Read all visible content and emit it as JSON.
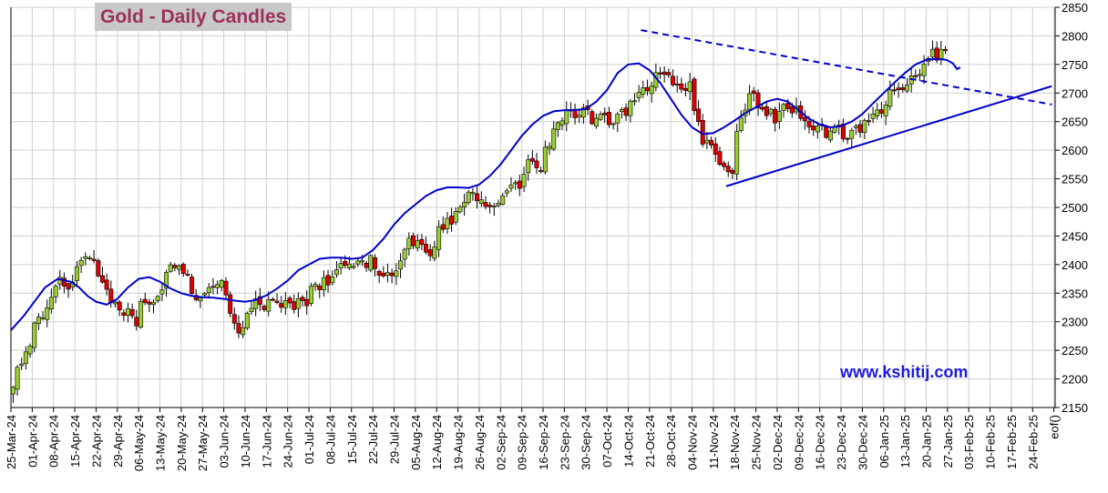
{
  "title": "Gold - Daily Candles",
  "watermark": "www.kshitij.com",
  "colors": {
    "up": "#9acd32",
    "down": "#e00000",
    "ma": "#0000cc",
    "trend": "#0000cc",
    "grid": "#cfcfcf"
  },
  "chart_data": {
    "type": "candlestick",
    "title": "Gold - Daily Candles",
    "ylim": [
      2150,
      2850
    ],
    "yticks": [
      2150,
      2200,
      2250,
      2300,
      2350,
      2400,
      2450,
      2500,
      2550,
      2600,
      2650,
      2700,
      2750,
      2800,
      2850
    ],
    "y_axis_side": "right",
    "grid": true,
    "x_labels": [
      "25-Mar-24",
      "01-Apr-24",
      "08-Apr-24",
      "15-Apr-24",
      "22-Apr-24",
      "29-Apr-24",
      "06-May-24",
      "13-May-24",
      "20-May-24",
      "27-May-24",
      "03-Jun-24",
      "10-Jun-24",
      "17-Jun-24",
      "24-Jun-24",
      "01-Jul-24",
      "08-Jul-24",
      "15-Jul-24",
      "22-Jul-24",
      "29-Jul-24",
      "05-Aug-24",
      "12-Aug-24",
      "19-Aug-24",
      "26-Aug-24",
      "02-Sep-24",
      "09-Sep-24",
      "16-Sep-24",
      "23-Sep-24",
      "30-Sep-24",
      "07-Oct-24",
      "14-Oct-24",
      "21-Oct-24",
      "28-Oct-24",
      "04-Nov-24",
      "11-Nov-24",
      "18-Nov-24",
      "25-Nov-24",
      "02-Dec-24",
      "09-Dec-24",
      "16-Dec-24",
      "23-Dec-24",
      "30-Dec-24",
      "06-Jan-25",
      "13-Jan-25",
      "20-Jan-25",
      "27-Jan-25",
      "03-Feb-25",
      "10-Feb-25",
      "17-Feb-25",
      "24-Feb-25",
      "eof()"
    ],
    "weekly_closes": [
      2245,
      2330,
      2360,
      2395,
      2320,
      2305,
      2365,
      2400,
      2340,
      2345,
      2295,
      2330,
      2325,
      2335,
      2380,
      2410,
      2410,
      2395,
      2440,
      2430,
      2490,
      2520,
      2510,
      2550,
      2580,
      2645,
      2680,
      2640,
      2660,
      2710,
      2740,
      2715,
      2590,
      2570,
      2700,
      2650,
      2660,
      2640,
      2620,
      2630,
      2670,
      2715,
      2750,
      2765
    ],
    "moving_average": {
      "name": "",
      "points": [
        [
          0,
          2285
        ],
        [
          0.6,
          2310
        ],
        [
          1.1,
          2335
        ],
        [
          1.6,
          2360
        ],
        [
          2.2,
          2375
        ],
        [
          2.8,
          2370
        ],
        [
          3.2,
          2360
        ],
        [
          3.6,
          2345
        ],
        [
          4.0,
          2335
        ],
        [
          4.5,
          2330
        ],
        [
          5.0,
          2340
        ],
        [
          5.5,
          2360
        ],
        [
          6.0,
          2375
        ],
        [
          6.5,
          2378
        ],
        [
          7.0,
          2370
        ],
        [
          7.5,
          2358
        ],
        [
          8.0,
          2350
        ],
        [
          8.5,
          2345
        ],
        [
          9.0,
          2343
        ],
        [
          9.5,
          2342
        ],
        [
          10.0,
          2340
        ],
        [
          10.5,
          2337
        ],
        [
          11.0,
          2335
        ],
        [
          11.5,
          2338
        ],
        [
          12.0,
          2346
        ],
        [
          12.5,
          2358
        ],
        [
          13.0,
          2372
        ],
        [
          13.5,
          2390
        ],
        [
          14.0,
          2400
        ],
        [
          14.5,
          2410
        ],
        [
          15.0,
          2412
        ],
        [
          15.5,
          2412
        ],
        [
          16.0,
          2410
        ],
        [
          16.5,
          2412
        ],
        [
          17.0,
          2425
        ],
        [
          17.5,
          2445
        ],
        [
          18.0,
          2470
        ],
        [
          18.5,
          2490
        ],
        [
          19.0,
          2505
        ],
        [
          19.5,
          2520
        ],
        [
          20.0,
          2530
        ],
        [
          20.5,
          2535
        ],
        [
          21.0,
          2535
        ],
        [
          21.5,
          2534
        ],
        [
          22.0,
          2540
        ],
        [
          22.5,
          2555
        ],
        [
          23.0,
          2575
        ],
        [
          23.5,
          2600
        ],
        [
          24.0,
          2625
        ],
        [
          24.5,
          2645
        ],
        [
          25.0,
          2660
        ],
        [
          25.5,
          2668
        ],
        [
          26.0,
          2670
        ],
        [
          26.5,
          2670
        ],
        [
          27.0,
          2672
        ],
        [
          27.5,
          2685
        ],
        [
          28.0,
          2705
        ],
        [
          28.5,
          2735
        ],
        [
          29.0,
          2750
        ],
        [
          29.5,
          2752
        ],
        [
          30.0,
          2740
        ],
        [
          30.5,
          2718
        ],
        [
          31.0,
          2690
        ],
        [
          31.5,
          2662
        ],
        [
          32.0,
          2640
        ],
        [
          32.5,
          2628
        ],
        [
          33.0,
          2630
        ],
        [
          33.5,
          2640
        ],
        [
          34.0,
          2652
        ],
        [
          34.5,
          2665
        ],
        [
          35.0,
          2675
        ],
        [
          35.5,
          2685
        ],
        [
          36.0,
          2690
        ],
        [
          36.5,
          2685
        ],
        [
          37.0,
          2670
        ],
        [
          37.5,
          2655
        ],
        [
          38.0,
          2645
        ],
        [
          38.5,
          2640
        ],
        [
          39.0,
          2642
        ],
        [
          39.5,
          2650
        ],
        [
          40.0,
          2663
        ],
        [
          40.5,
          2682
        ],
        [
          41.0,
          2700
        ],
        [
          41.5,
          2718
        ],
        [
          42.0,
          2735
        ],
        [
          42.5,
          2750
        ],
        [
          43.0,
          2758
        ],
        [
          43.5,
          2760
        ],
        [
          43.95,
          2758
        ],
        [
          44.25,
          2752
        ],
        [
          44.45,
          2742
        ],
        [
          44.6,
          2745
        ]
      ]
    },
    "trendlines": [
      {
        "style": "dashed",
        "from": [
          29.6,
          2810
        ],
        "to": [
          48.9,
          2680
        ]
      },
      {
        "style": "solid",
        "from": [
          33.6,
          2537
        ],
        "to": [
          48.9,
          2712
        ]
      }
    ]
  }
}
